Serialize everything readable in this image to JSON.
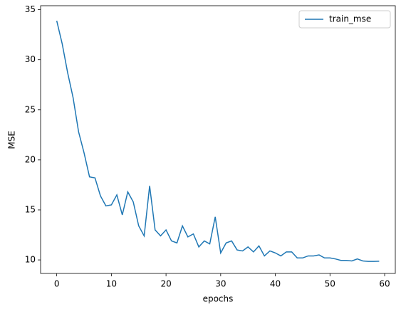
{
  "chart_data": {
    "type": "line",
    "xlabel": "epochs",
    "ylabel": "MSE",
    "x": [
      0,
      1,
      2,
      3,
      4,
      5,
      6,
      7,
      8,
      9,
      10,
      11,
      12,
      13,
      14,
      15,
      16,
      17,
      18,
      19,
      20,
      21,
      22,
      23,
      24,
      25,
      26,
      27,
      28,
      29,
      30,
      31,
      32,
      33,
      34,
      35,
      36,
      37,
      38,
      39,
      40,
      41,
      42,
      43,
      44,
      45,
      46,
      47,
      48,
      49,
      50,
      51,
      52,
      53,
      54,
      55,
      56,
      57,
      58,
      59
    ],
    "series": [
      {
        "name": "train_mse",
        "color": "#1f77b4",
        "values": [
          33.9,
          31.6,
          28.7,
          26.2,
          22.8,
          20.7,
          18.3,
          18.2,
          16.4,
          15.4,
          15.5,
          16.5,
          14.5,
          16.8,
          15.8,
          13.4,
          12.4,
          17.4,
          13.0,
          12.4,
          13.0,
          11.9,
          11.7,
          13.4,
          12.3,
          12.6,
          11.3,
          11.9,
          11.6,
          14.3,
          10.7,
          11.7,
          11.9,
          11.0,
          10.9,
          11.3,
          10.8,
          11.4,
          10.4,
          10.9,
          10.7,
          10.4,
          10.8,
          10.8,
          10.2,
          10.2,
          10.4,
          10.4,
          10.5,
          10.2,
          10.2,
          10.1,
          9.95,
          9.95,
          9.9,
          10.1,
          9.9,
          9.85,
          9.85,
          9.87
        ]
      }
    ],
    "xlim": [
      -2.95,
      61.95
    ],
    "xticks": [
      0,
      10,
      20,
      30,
      40,
      50,
      60
    ],
    "ylim": [
      8.65,
      35.4
    ],
    "yticks": [
      10,
      15,
      20,
      25,
      30,
      35
    ],
    "legend": "upper right"
  }
}
